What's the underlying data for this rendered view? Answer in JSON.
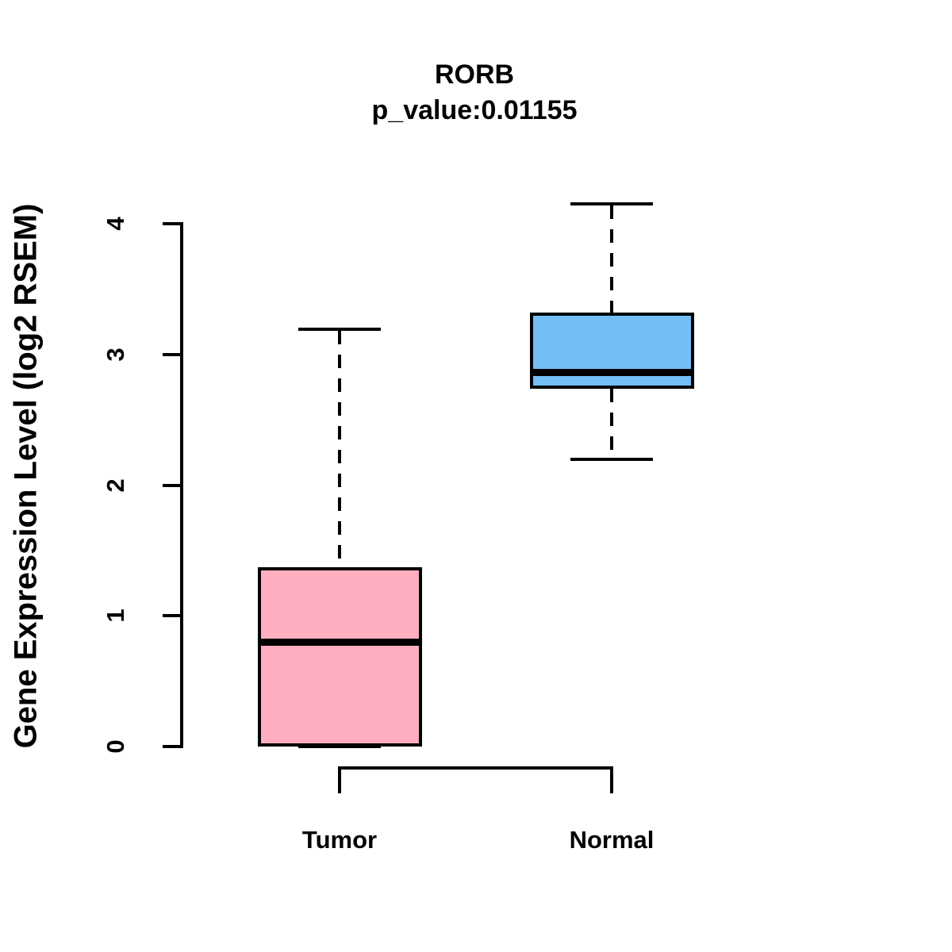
{
  "figure": {
    "title": "RORB",
    "subtitle": "p_value:0.01155",
    "ylabel": "Gene Expression Level (log2 RSEM)"
  },
  "colors": {
    "tumor_fill": "#FFAEC0",
    "normal_fill": "#73BEF5",
    "stroke": "#000000",
    "background": "#FFFFFF"
  },
  "chart_data": {
    "type": "boxplot",
    "title": "RORB",
    "subtitle": "p_value:0.01155",
    "xlabel": "",
    "ylabel": "Gene Expression Level (log2 RSEM)",
    "ylim": [
      0,
      4
    ],
    "yticks": [
      0,
      1,
      2,
      3,
      4
    ],
    "grid": false,
    "legend": "none",
    "whisker_style": "dashed",
    "groups": [
      {
        "label": "Tumor",
        "fill": "#FFAEC0",
        "whisker_low": 0.0,
        "q1": 0.0,
        "median": 0.8,
        "q3": 1.37,
        "whisker_high": 3.19
      },
      {
        "label": "Normal",
        "fill": "#73BEF5",
        "whisker_low": 2.2,
        "q1": 2.74,
        "median": 2.86,
        "q3": 3.32,
        "whisker_high": 4.15
      }
    ]
  }
}
